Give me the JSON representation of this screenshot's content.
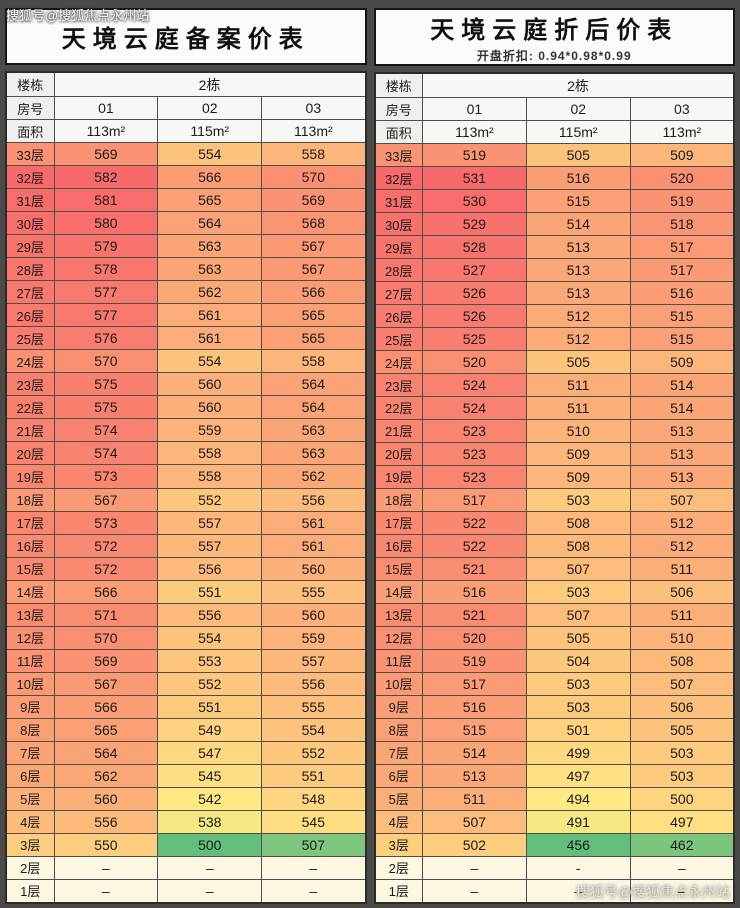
{
  "watermarks": {
    "top_left": "搜狐号@搜狐焦点永州站",
    "bottom_right": "搜狐号@搜狐焦点永州站"
  },
  "heatmap_colors": {
    "low": "#63be7b",
    "mid": "#ffeb84",
    "high": "#f8696b",
    "empty": "#fbf7e1"
  },
  "tables": [
    {
      "id": "recorded-price-table",
      "title": "天境云庭备案价表",
      "subtitle": "",
      "header": {
        "building_label": "楼栋",
        "building": "2栋",
        "room_label": "房号",
        "rooms": [
          "01",
          "02",
          "03"
        ],
        "area_label": "面积",
        "areas": [
          "113m²",
          "115m²",
          "113m²"
        ]
      },
      "scale": {
        "min": 500,
        "max": 582
      },
      "floors": [
        {
          "floor": "33层",
          "values": [
            "569",
            "554",
            "558"
          ]
        },
        {
          "floor": "32层",
          "values": [
            "582",
            "566",
            "570"
          ]
        },
        {
          "floor": "31层",
          "values": [
            "581",
            "565",
            "569"
          ]
        },
        {
          "floor": "30层",
          "values": [
            "580",
            "564",
            "568"
          ]
        },
        {
          "floor": "29层",
          "values": [
            "579",
            "563",
            "567"
          ]
        },
        {
          "floor": "28层",
          "values": [
            "578",
            "563",
            "567"
          ]
        },
        {
          "floor": "27层",
          "values": [
            "577",
            "562",
            "566"
          ]
        },
        {
          "floor": "26层",
          "values": [
            "577",
            "561",
            "565"
          ]
        },
        {
          "floor": "25层",
          "values": [
            "576",
            "561",
            "565"
          ]
        },
        {
          "floor": "24层",
          "values": [
            "570",
            "554",
            "558"
          ]
        },
        {
          "floor": "23层",
          "values": [
            "575",
            "560",
            "564"
          ]
        },
        {
          "floor": "22层",
          "values": [
            "575",
            "560",
            "564"
          ]
        },
        {
          "floor": "21层",
          "values": [
            "574",
            "559",
            "563"
          ]
        },
        {
          "floor": "20层",
          "values": [
            "574",
            "558",
            "563"
          ]
        },
        {
          "floor": "19层",
          "values": [
            "573",
            "558",
            "562"
          ]
        },
        {
          "floor": "18层",
          "values": [
            "567",
            "552",
            "556"
          ]
        },
        {
          "floor": "17层",
          "values": [
            "573",
            "557",
            "561"
          ]
        },
        {
          "floor": "16层",
          "values": [
            "572",
            "557",
            "561"
          ]
        },
        {
          "floor": "15层",
          "values": [
            "572",
            "556",
            "560"
          ]
        },
        {
          "floor": "14层",
          "values": [
            "566",
            "551",
            "555"
          ]
        },
        {
          "floor": "13层",
          "values": [
            "571",
            "556",
            "560"
          ]
        },
        {
          "floor": "12层",
          "values": [
            "570",
            "554",
            "559"
          ]
        },
        {
          "floor": "11层",
          "values": [
            "569",
            "553",
            "557"
          ]
        },
        {
          "floor": "10层",
          "values": [
            "567",
            "552",
            "556"
          ]
        },
        {
          "floor": "9层",
          "values": [
            "566",
            "551",
            "555"
          ]
        },
        {
          "floor": "8层",
          "values": [
            "565",
            "549",
            "554"
          ]
        },
        {
          "floor": "7层",
          "values": [
            "564",
            "547",
            "552"
          ]
        },
        {
          "floor": "6层",
          "values": [
            "562",
            "545",
            "551"
          ]
        },
        {
          "floor": "5层",
          "values": [
            "560",
            "542",
            "548"
          ]
        },
        {
          "floor": "4层",
          "values": [
            "556",
            "538",
            "545"
          ]
        },
        {
          "floor": "3层",
          "values": [
            "550",
            "500",
            "507"
          ]
        },
        {
          "floor": "2层",
          "values": [
            "–",
            "–",
            "–"
          ]
        },
        {
          "floor": "1层",
          "values": [
            "–",
            "–",
            "–"
          ]
        }
      ]
    },
    {
      "id": "discounted-price-table",
      "title": "天境云庭折后价表",
      "subtitle": "开盘折扣: 0.94*0.98*0.99",
      "header": {
        "building_label": "楼栋",
        "building": "2栋",
        "room_label": "房号",
        "rooms": [
          "01",
          "02",
          "03"
        ],
        "area_label": "面积",
        "areas": [
          "113m²",
          "115m²",
          "113m²"
        ]
      },
      "scale": {
        "min": 456,
        "max": 531
      },
      "floors": [
        {
          "floor": "33层",
          "values": [
            "519",
            "505",
            "509"
          ]
        },
        {
          "floor": "32层",
          "values": [
            "531",
            "516",
            "520"
          ]
        },
        {
          "floor": "31层",
          "values": [
            "530",
            "515",
            "519"
          ]
        },
        {
          "floor": "30层",
          "values": [
            "529",
            "514",
            "518"
          ]
        },
        {
          "floor": "29层",
          "values": [
            "528",
            "513",
            "517"
          ]
        },
        {
          "floor": "28层",
          "values": [
            "527",
            "513",
            "517"
          ]
        },
        {
          "floor": "27层",
          "values": [
            "526",
            "513",
            "516"
          ]
        },
        {
          "floor": "26层",
          "values": [
            "526",
            "512",
            "515"
          ]
        },
        {
          "floor": "25层",
          "values": [
            "525",
            "512",
            "515"
          ]
        },
        {
          "floor": "24层",
          "values": [
            "520",
            "505",
            "509"
          ]
        },
        {
          "floor": "23层",
          "values": [
            "524",
            "511",
            "514"
          ]
        },
        {
          "floor": "22层",
          "values": [
            "524",
            "511",
            "514"
          ]
        },
        {
          "floor": "21层",
          "values": [
            "523",
            "510",
            "513"
          ]
        },
        {
          "floor": "20层",
          "values": [
            "523",
            "509",
            "513"
          ]
        },
        {
          "floor": "19层",
          "values": [
            "523",
            "509",
            "513"
          ]
        },
        {
          "floor": "18层",
          "values": [
            "517",
            "503",
            "507"
          ]
        },
        {
          "floor": "17层",
          "values": [
            "522",
            "508",
            "512"
          ]
        },
        {
          "floor": "16层",
          "values": [
            "522",
            "508",
            "512"
          ]
        },
        {
          "floor": "15层",
          "values": [
            "521",
            "507",
            "511"
          ]
        },
        {
          "floor": "14层",
          "values": [
            "516",
            "503",
            "506"
          ]
        },
        {
          "floor": "13层",
          "values": [
            "521",
            "507",
            "511"
          ]
        },
        {
          "floor": "12层",
          "values": [
            "520",
            "505",
            "510"
          ]
        },
        {
          "floor": "11层",
          "values": [
            "519",
            "504",
            "508"
          ]
        },
        {
          "floor": "10层",
          "values": [
            "517",
            "503",
            "507"
          ]
        },
        {
          "floor": "9层",
          "values": [
            "516",
            "503",
            "506"
          ]
        },
        {
          "floor": "8层",
          "values": [
            "515",
            "501",
            "505"
          ]
        },
        {
          "floor": "7层",
          "values": [
            "514",
            "499",
            "503"
          ]
        },
        {
          "floor": "6层",
          "values": [
            "513",
            "497",
            "503"
          ]
        },
        {
          "floor": "5层",
          "values": [
            "511",
            "494",
            "500"
          ]
        },
        {
          "floor": "4层",
          "values": [
            "507",
            "491",
            "497"
          ]
        },
        {
          "floor": "3层",
          "values": [
            "502",
            "456",
            "462"
          ]
        },
        {
          "floor": "2层",
          "values": [
            "–",
            "-",
            "–"
          ]
        },
        {
          "floor": "1层",
          "values": [
            "–",
            "–",
            "–"
          ]
        }
      ]
    }
  ]
}
